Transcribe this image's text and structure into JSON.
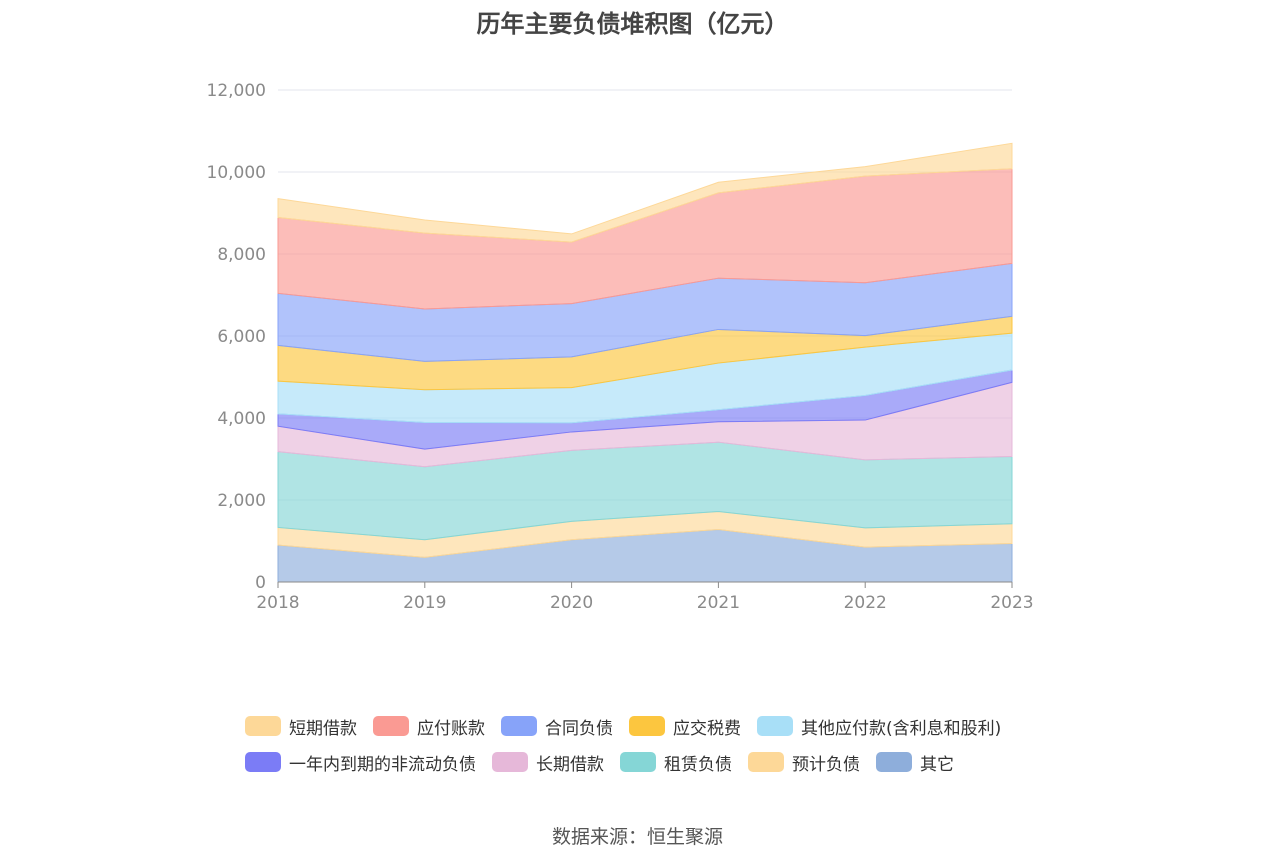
{
  "chart_data": {
    "type": "area",
    "stacked": true,
    "title": "历年主要负债堆积图（亿元）",
    "xlabel": "",
    "ylabel": "",
    "x": [
      "2018",
      "2019",
      "2020",
      "2021",
      "2022",
      "2023"
    ],
    "ylim": [
      0,
      12000
    ],
    "yticks": [
      0,
      2000,
      4000,
      6000,
      8000,
      10000,
      12000
    ],
    "ytick_labels": [
      "0",
      "2,000",
      "4,000",
      "6,000",
      "8,000",
      "10,000",
      "12,000"
    ],
    "grid": true,
    "legend_position": "bottom",
    "series": [
      {
        "name": "其它",
        "color": "#8eaedb",
        "values": [
          900,
          600,
          1030,
          1280,
          850,
          940
        ]
      },
      {
        "name": "预计负债",
        "color": "#fdd898",
        "values": [
          430,
          430,
          450,
          440,
          470,
          480
        ]
      },
      {
        "name": "租赁负债",
        "color": "#85d6d6",
        "values": [
          1850,
          1780,
          1730,
          1690,
          1660,
          1640
        ]
      },
      {
        "name": "长期借款",
        "color": "#e6b8d9",
        "values": [
          620,
          430,
          450,
          500,
          970,
          1810
        ]
      },
      {
        "name": "一年内到期的非流动负债",
        "color": "#7b7cf6",
        "values": [
          300,
          650,
          220,
          290,
          600,
          300
        ]
      },
      {
        "name": "其他应付款(含利息和股利)",
        "color": "#a8dff7",
        "values": [
          800,
          800,
          860,
          1140,
          1180,
          900
        ]
      },
      {
        "name": "应交税费",
        "color": "#fcc63f",
        "values": [
          870,
          690,
          750,
          820,
          280,
          410
        ]
      },
      {
        "name": "合同负债",
        "color": "#87a3f9",
        "values": [
          1270,
          1280,
          1300,
          1250,
          1290,
          1290
        ]
      },
      {
        "name": "应付账款",
        "color": "#fa9a93",
        "values": [
          1850,
          1850,
          1500,
          2080,
          2600,
          2310
        ]
      },
      {
        "name": "短期借款",
        "color": "#fdd898",
        "values": [
          460,
          320,
          200,
          260,
          230,
          620
        ]
      }
    ],
    "legend_order": [
      "短期借款",
      "应付账款",
      "合同负债",
      "应交税费",
      "其他应付款(含利息和股利)",
      "一年内到期的非流动负债",
      "长期借款",
      "租赁负债",
      "预计负债",
      "其它"
    ]
  },
  "source_text": "数据来源：恒生聚源"
}
